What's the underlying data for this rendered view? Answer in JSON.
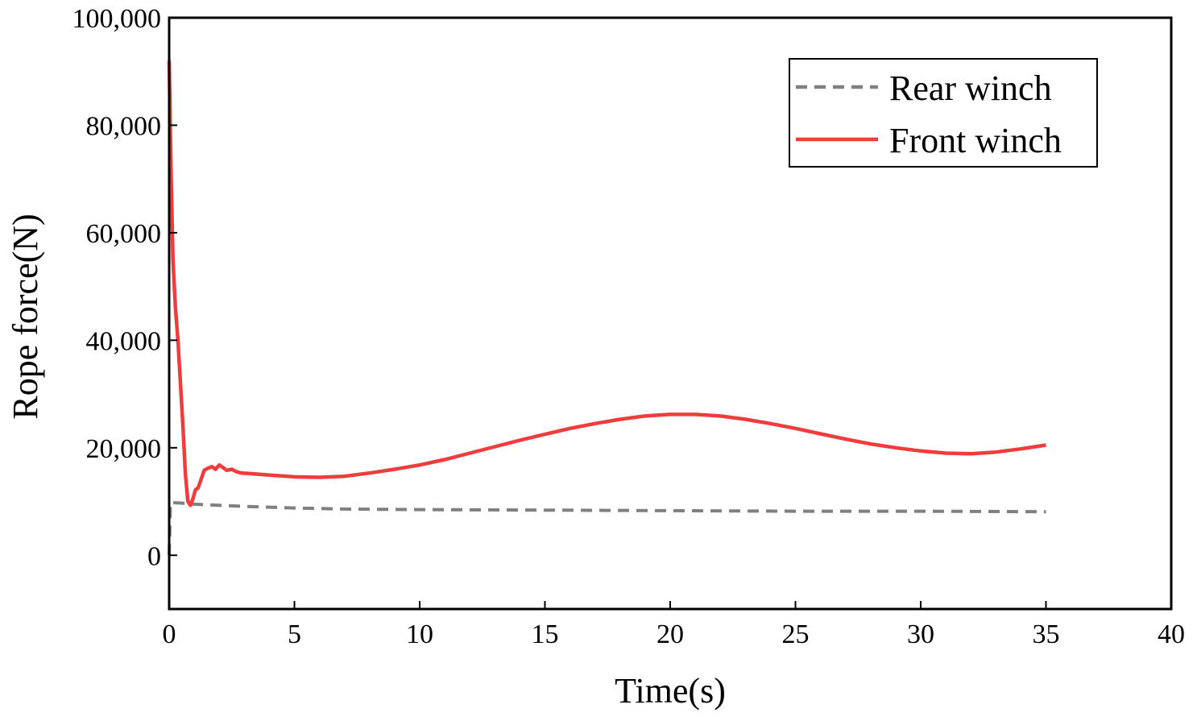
{
  "chart_data": {
    "type": "line",
    "title": "",
    "xlabel": "Time(s)",
    "ylabel": "Rope force(N)",
    "xlim": [
      0,
      40
    ],
    "ylim": [
      -10000,
      100000
    ],
    "x_ticks": [
      0,
      5,
      10,
      15,
      20,
      25,
      30,
      35,
      40
    ],
    "y_ticks": [
      0,
      20000,
      40000,
      60000,
      80000,
      100000
    ],
    "x_tick_labels": [
      "0",
      "5",
      "10",
      "15",
      "20",
      "25",
      "30",
      "35",
      "40"
    ],
    "y_tick_labels": [
      "0",
      "20,000",
      "40,000",
      "60,000",
      "80,000",
      "100,000"
    ],
    "grid": false,
    "legend_position": "top-right",
    "series": [
      {
        "name": "Rear winch",
        "color": "#808080",
        "style": "dashed",
        "x": [
          0,
          0.05,
          0.5,
          1,
          2,
          3,
          5,
          7,
          10,
          15,
          20,
          25,
          30,
          35
        ],
        "y": [
          0,
          9800,
          9700,
          9500,
          9300,
          9100,
          8800,
          8600,
          8500,
          8400,
          8300,
          8200,
          8200,
          8100
        ]
      },
      {
        "name": "Front winch",
        "color": "#f03c3c",
        "style": "solid",
        "x": [
          0,
          0.08,
          0.15,
          0.25,
          0.35,
          0.45,
          0.55,
          0.65,
          0.75,
          0.85,
          0.95,
          1.05,
          1.15,
          1.25,
          1.4,
          1.55,
          1.7,
          1.85,
          2.0,
          2.15,
          2.3,
          2.5,
          2.7,
          2.9,
          3.2,
          4,
          5,
          6,
          7,
          8,
          9,
          10,
          11,
          12,
          13,
          14,
          15,
          16,
          17,
          18,
          19,
          20,
          21,
          22,
          23,
          24,
          25,
          26,
          27,
          28,
          29,
          30,
          31,
          32,
          33,
          34,
          35
        ],
        "y": [
          92000,
          70000,
          55000,
          46000,
          40000,
          32000,
          24000,
          15000,
          10000,
          9300,
          10500,
          12200,
          12500,
          13800,
          15800,
          16200,
          16500,
          16000,
          16800,
          16300,
          15800,
          16000,
          15500,
          15300,
          15200,
          14900,
          14600,
          14500,
          14700,
          15300,
          16000,
          16800,
          17800,
          19000,
          20200,
          21400,
          22500,
          23600,
          24500,
          25300,
          25900,
          26200,
          26200,
          25900,
          25300,
          24500,
          23600,
          22600,
          21600,
          20700,
          20000,
          19400,
          19000,
          18900,
          19200,
          19800,
          20500
        ]
      }
    ]
  }
}
